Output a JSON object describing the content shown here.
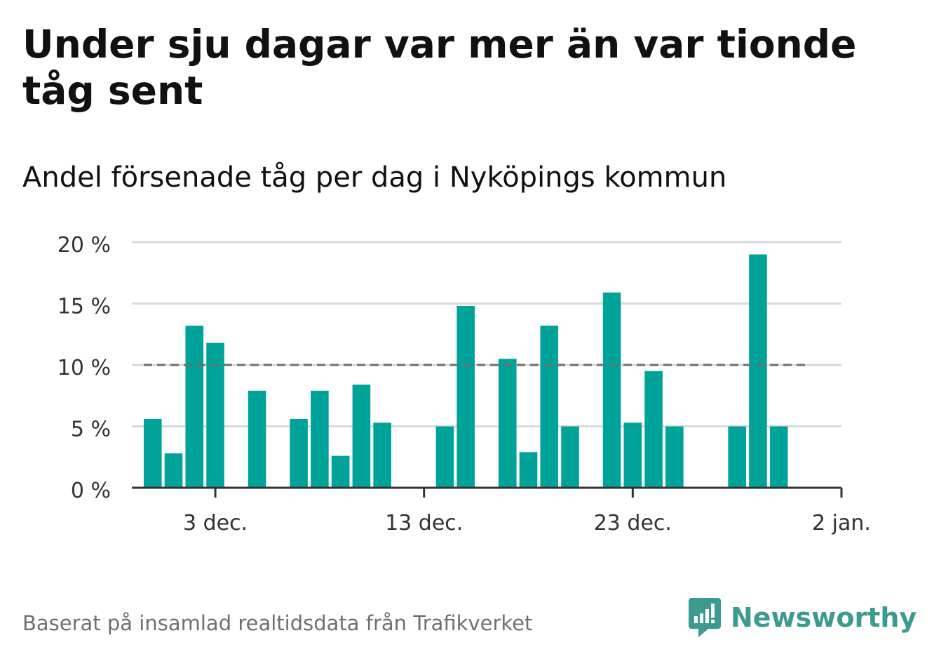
{
  "title": "Under sju dagar var mer än var tionde tåg sent",
  "subtitle": "Andel försenade tåg per dag i Nyköpings kommun",
  "source": "Baserat på insamlad realtidsdata från Trafikverket",
  "brand": "Newsworthy",
  "colors": {
    "bar": "#00a39a",
    "reference_line": "#6e6e6e",
    "grid": "#d9d9d9",
    "axis": "#333333",
    "brand": "#3d9a8e"
  },
  "chart_data": {
    "type": "bar",
    "x_start": "2023-11-29",
    "x_end": "2024-01-02",
    "x": [
      "2023-11-30",
      "2023-12-01",
      "2023-12-02",
      "2023-12-03",
      "2023-12-04",
      "2023-12-05",
      "2023-12-06",
      "2023-12-07",
      "2023-12-08",
      "2023-12-09",
      "2023-12-10",
      "2023-12-11",
      "2023-12-12",
      "2023-12-13",
      "2023-12-14",
      "2023-12-15",
      "2023-12-16",
      "2023-12-17",
      "2023-12-18",
      "2023-12-19",
      "2023-12-20",
      "2023-12-21",
      "2023-12-22",
      "2023-12-23",
      "2023-12-24",
      "2023-12-25",
      "2023-12-26",
      "2023-12-27",
      "2023-12-28",
      "2023-12-29",
      "2023-12-30",
      "2023-12-31",
      "2024-01-01"
    ],
    "values": [
      5.6,
      2.8,
      13.2,
      11.8,
      null,
      7.9,
      null,
      5.6,
      7.9,
      2.6,
      8.4,
      5.3,
      null,
      null,
      5.0,
      14.8,
      null,
      10.5,
      2.9,
      13.2,
      5.0,
      null,
      15.9,
      5.3,
      9.5,
      5.0,
      null,
      null,
      5.0,
      19.0,
      5.0,
      null,
      null
    ],
    "reference_line": {
      "value": 10,
      "from": "2023-11-30",
      "to": "2023-12-31",
      "style": "dashed"
    },
    "ylim": [
      0,
      20
    ],
    "y_ticks": [
      0,
      5,
      10,
      15,
      20
    ],
    "y_tick_labels": [
      "0 %",
      "5 %",
      "10 %",
      "15 %",
      "20 %"
    ],
    "x_ticks": [
      "2023-12-03",
      "2023-12-13",
      "2023-12-23",
      "2024-01-02"
    ],
    "x_tick_labels": [
      "3 dec.",
      "13 dec.",
      "23 dec.",
      "2 jan."
    ],
    "xlabel": "",
    "ylabel": "",
    "grid": true
  }
}
